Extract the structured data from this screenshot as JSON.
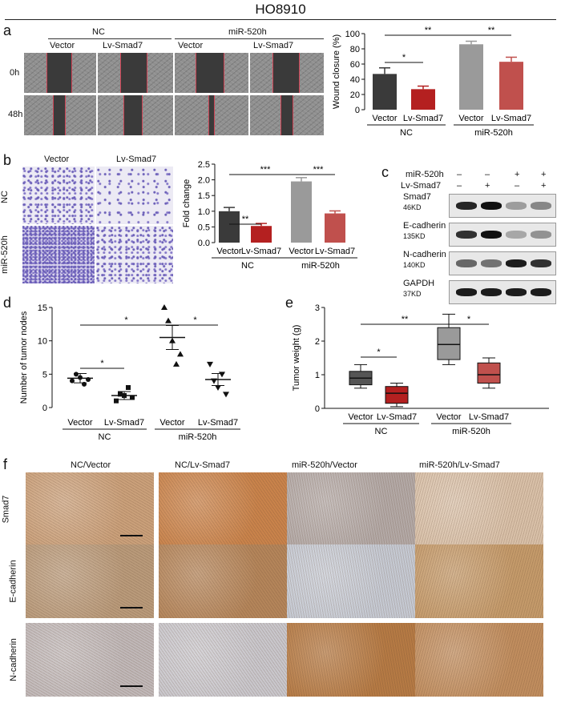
{
  "figure": {
    "title": "HO8910",
    "panel_labels": [
      "a",
      "b",
      "c",
      "d",
      "e",
      "f"
    ],
    "panel_a": {
      "group_nc": "NC",
      "group_mir": "miR-520h",
      "col_vector": "Vector",
      "col_lv": "Lv-Smad7",
      "row_0h": "0h",
      "row_48h": "48h"
    },
    "panel_b": {
      "col_vector": "Vector",
      "col_lv": "Lv-Smad7",
      "row_nc": "NC",
      "row_mir": "miR-520h"
    },
    "panel_c": {
      "row_mir": "miR-520h",
      "row_lv": "Lv-Smad7",
      "signs_mir": [
        "–",
        "–",
        "+",
        "+"
      ],
      "signs_lv": [
        "–",
        "+",
        "–",
        "+"
      ],
      "proteins": [
        {
          "name": "Smad7",
          "kd": "46KD"
        },
        {
          "name": "E-cadherin",
          "kd": "135KD"
        },
        {
          "name": "N-cadherin",
          "kd": "140KD"
        },
        {
          "name": "GAPDH",
          "kd": "37KD"
        }
      ]
    },
    "panel_f": {
      "cols": [
        "NC/Vector",
        "NC/Lv-Smad7",
        "miR-520h/Vector",
        "miR-520h/Lv-Smad7"
      ],
      "rows": [
        "Smad7",
        "E-cadherin",
        "N-cadherin"
      ]
    }
  },
  "chart_data": [
    {
      "id": "a",
      "type": "bar",
      "categories": [
        "Vector",
        "Lv-Smad7",
        "Vector",
        "Lv-Smad7"
      ],
      "groups": [
        "NC",
        "miR-520h"
      ],
      "values": [
        47,
        27,
        86,
        63
      ],
      "errors": [
        8,
        4,
        4,
        6
      ],
      "colors": [
        "#3a3a3a",
        "#b42020",
        "#9a9a9a",
        "#c0504d"
      ],
      "ylabel": "Wound closure (%)",
      "ylim": [
        0,
        100
      ],
      "yticks": [
        "0",
        "20",
        "40",
        "60",
        "80",
        "100"
      ],
      "significance": [
        {
          "from": 0,
          "to": 1,
          "label": "*"
        },
        {
          "from": 0,
          "to": 2,
          "label": "**"
        },
        {
          "from": 2,
          "to": 3,
          "label": "**"
        }
      ]
    },
    {
      "id": "b",
      "type": "bar",
      "categories": [
        "Vector",
        "Lv-Smad7",
        "Vector",
        "Lv-Smad7"
      ],
      "groups": [
        "NC",
        "miR-520h"
      ],
      "values": [
        1.0,
        0.53,
        1.95,
        0.93
      ],
      "errors": [
        0.12,
        0.08,
        0.12,
        0.08
      ],
      "colors": [
        "#3a3a3a",
        "#b42020",
        "#9a9a9a",
        "#c0504d"
      ],
      "ylabel": "Fold change",
      "ylim": [
        0,
        2.5
      ],
      "yticks": [
        "0.0",
        "0.5",
        "1.0",
        "1.5",
        "2.0",
        "2.5"
      ],
      "significance": [
        {
          "from": 0,
          "to": 1,
          "label": "**"
        },
        {
          "from": 0,
          "to": 2,
          "label": "***"
        },
        {
          "from": 2,
          "to": 3,
          "label": "***"
        }
      ]
    },
    {
      "id": "d",
      "type": "scatter",
      "categories": [
        "Vector",
        "Lv-Smad7",
        "Vector",
        "Lv-Smad7"
      ],
      "groups": [
        "NC",
        "miR-520h"
      ],
      "points": [
        [
          4,
          5,
          4.5,
          3.5,
          4.2
        ],
        [
          1,
          2,
          1.8,
          3,
          1.5
        ],
        [
          15,
          13,
          10,
          6.5,
          8
        ],
        [
          6.5,
          4,
          3,
          5,
          2
        ]
      ],
      "means": [
        4.4,
        1.8,
        10.5,
        4.2
      ],
      "sems": [
        0.7,
        0.6,
        1.8,
        0.9
      ],
      "ylabel": "Number of tumor nodes",
      "ylim": [
        0,
        15
      ],
      "yticks": [
        "0",
        "5",
        "10",
        "15"
      ],
      "significance": [
        {
          "from": 0,
          "to": 1,
          "label": "*"
        },
        {
          "from": 0,
          "to": 2,
          "label": "*"
        },
        {
          "from": 2,
          "to": 3,
          "label": "*"
        }
      ]
    },
    {
      "id": "e",
      "type": "box",
      "categories": [
        "Vector",
        "Lv-Smad7",
        "Vector",
        "Lv-Smad7"
      ],
      "groups": [
        "NC",
        "miR-520h"
      ],
      "boxes": [
        {
          "min": 0.6,
          "q1": 0.7,
          "median": 0.9,
          "q3": 1.1,
          "max": 1.3
        },
        {
          "min": 0.05,
          "q1": 0.15,
          "median": 0.45,
          "q3": 0.65,
          "max": 0.75
        },
        {
          "min": 1.3,
          "q1": 1.45,
          "median": 1.9,
          "q3": 2.4,
          "max": 2.8
        },
        {
          "min": 0.6,
          "q1": 0.75,
          "median": 1.0,
          "q3": 1.35,
          "max": 1.5
        }
      ],
      "colors": [
        "#555555",
        "#b42020",
        "#9a9a9a",
        "#c0504d"
      ],
      "ylabel": "Tumor weight (g)",
      "ylim": [
        0,
        3
      ],
      "yticks": [
        "0",
        "1",
        "2",
        "3"
      ],
      "significance": [
        {
          "from": 0,
          "to": 1,
          "label": "*"
        },
        {
          "from": 0,
          "to": 2,
          "label": "**"
        },
        {
          "from": 2,
          "to": 3,
          "label": "*"
        }
      ]
    }
  ]
}
